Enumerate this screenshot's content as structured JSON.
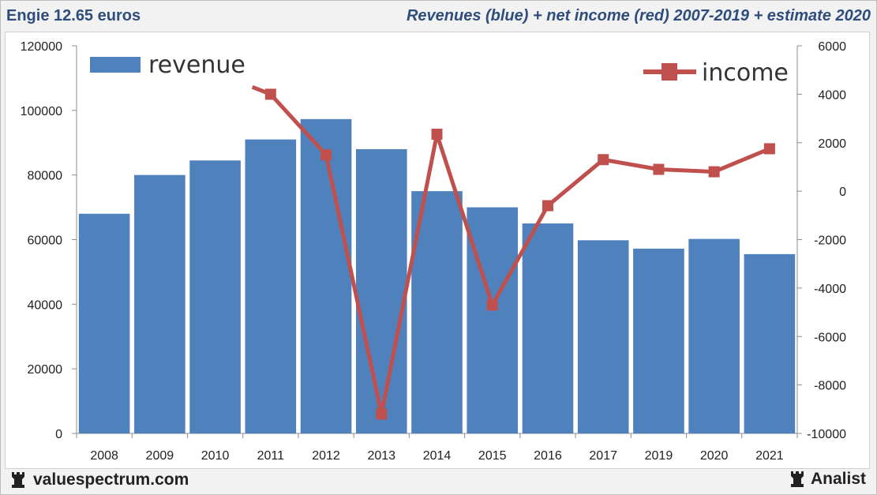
{
  "header": {
    "stock_title": "Engie 12.65 euros",
    "chart_title": "Revenues (blue) + net income (red) 2007-2019 + estimate 2020"
  },
  "footer": {
    "site": "valuespectrum.com",
    "brand": "Analist",
    "site_icon": "rook-icon",
    "brand_icon": "rook-icon"
  },
  "chart_data": {
    "type": "bar",
    "title": "Revenues (blue) + net income (red) 2007-2019 + estimate 2020",
    "categories": [
      "2008",
      "2009",
      "2010",
      "2011",
      "2012",
      "2013",
      "2014",
      "2015",
      "2016",
      "2017",
      "2019",
      "2020",
      "2021"
    ],
    "series": [
      {
        "name": "revenue",
        "type": "bar",
        "axis": "left",
        "color": "#4f81bd",
        "values": [
          68000,
          80000,
          84500,
          91000,
          97300,
          88000,
          75000,
          70000,
          65000,
          59800,
          57200,
          60200,
          55500
        ]
      },
      {
        "name": "income",
        "type": "line",
        "axis": "right",
        "color": "#c0504d",
        "values": [
          null,
          null,
          null,
          4000,
          1500,
          -9200,
          2350,
          -4700,
          -600,
          1300,
          900,
          800,
          1750
        ],
        "line_from_value": 4300
      }
    ],
    "y_left": {
      "min": 0,
      "max": 120000,
      "ticks": [
        "0",
        "20000",
        "40000",
        "60000",
        "80000",
        "100000",
        "120000"
      ]
    },
    "y_right": {
      "min": -10000,
      "max": 6000,
      "ticks": [
        "-10000",
        "-8000",
        "-6000",
        "-4000",
        "-2000",
        "0",
        "2000",
        "4000",
        "6000"
      ]
    },
    "legend": [
      {
        "label": "revenue",
        "position": "top-left"
      },
      {
        "label": "income",
        "position": "top-right"
      }
    ],
    "grid": false
  }
}
